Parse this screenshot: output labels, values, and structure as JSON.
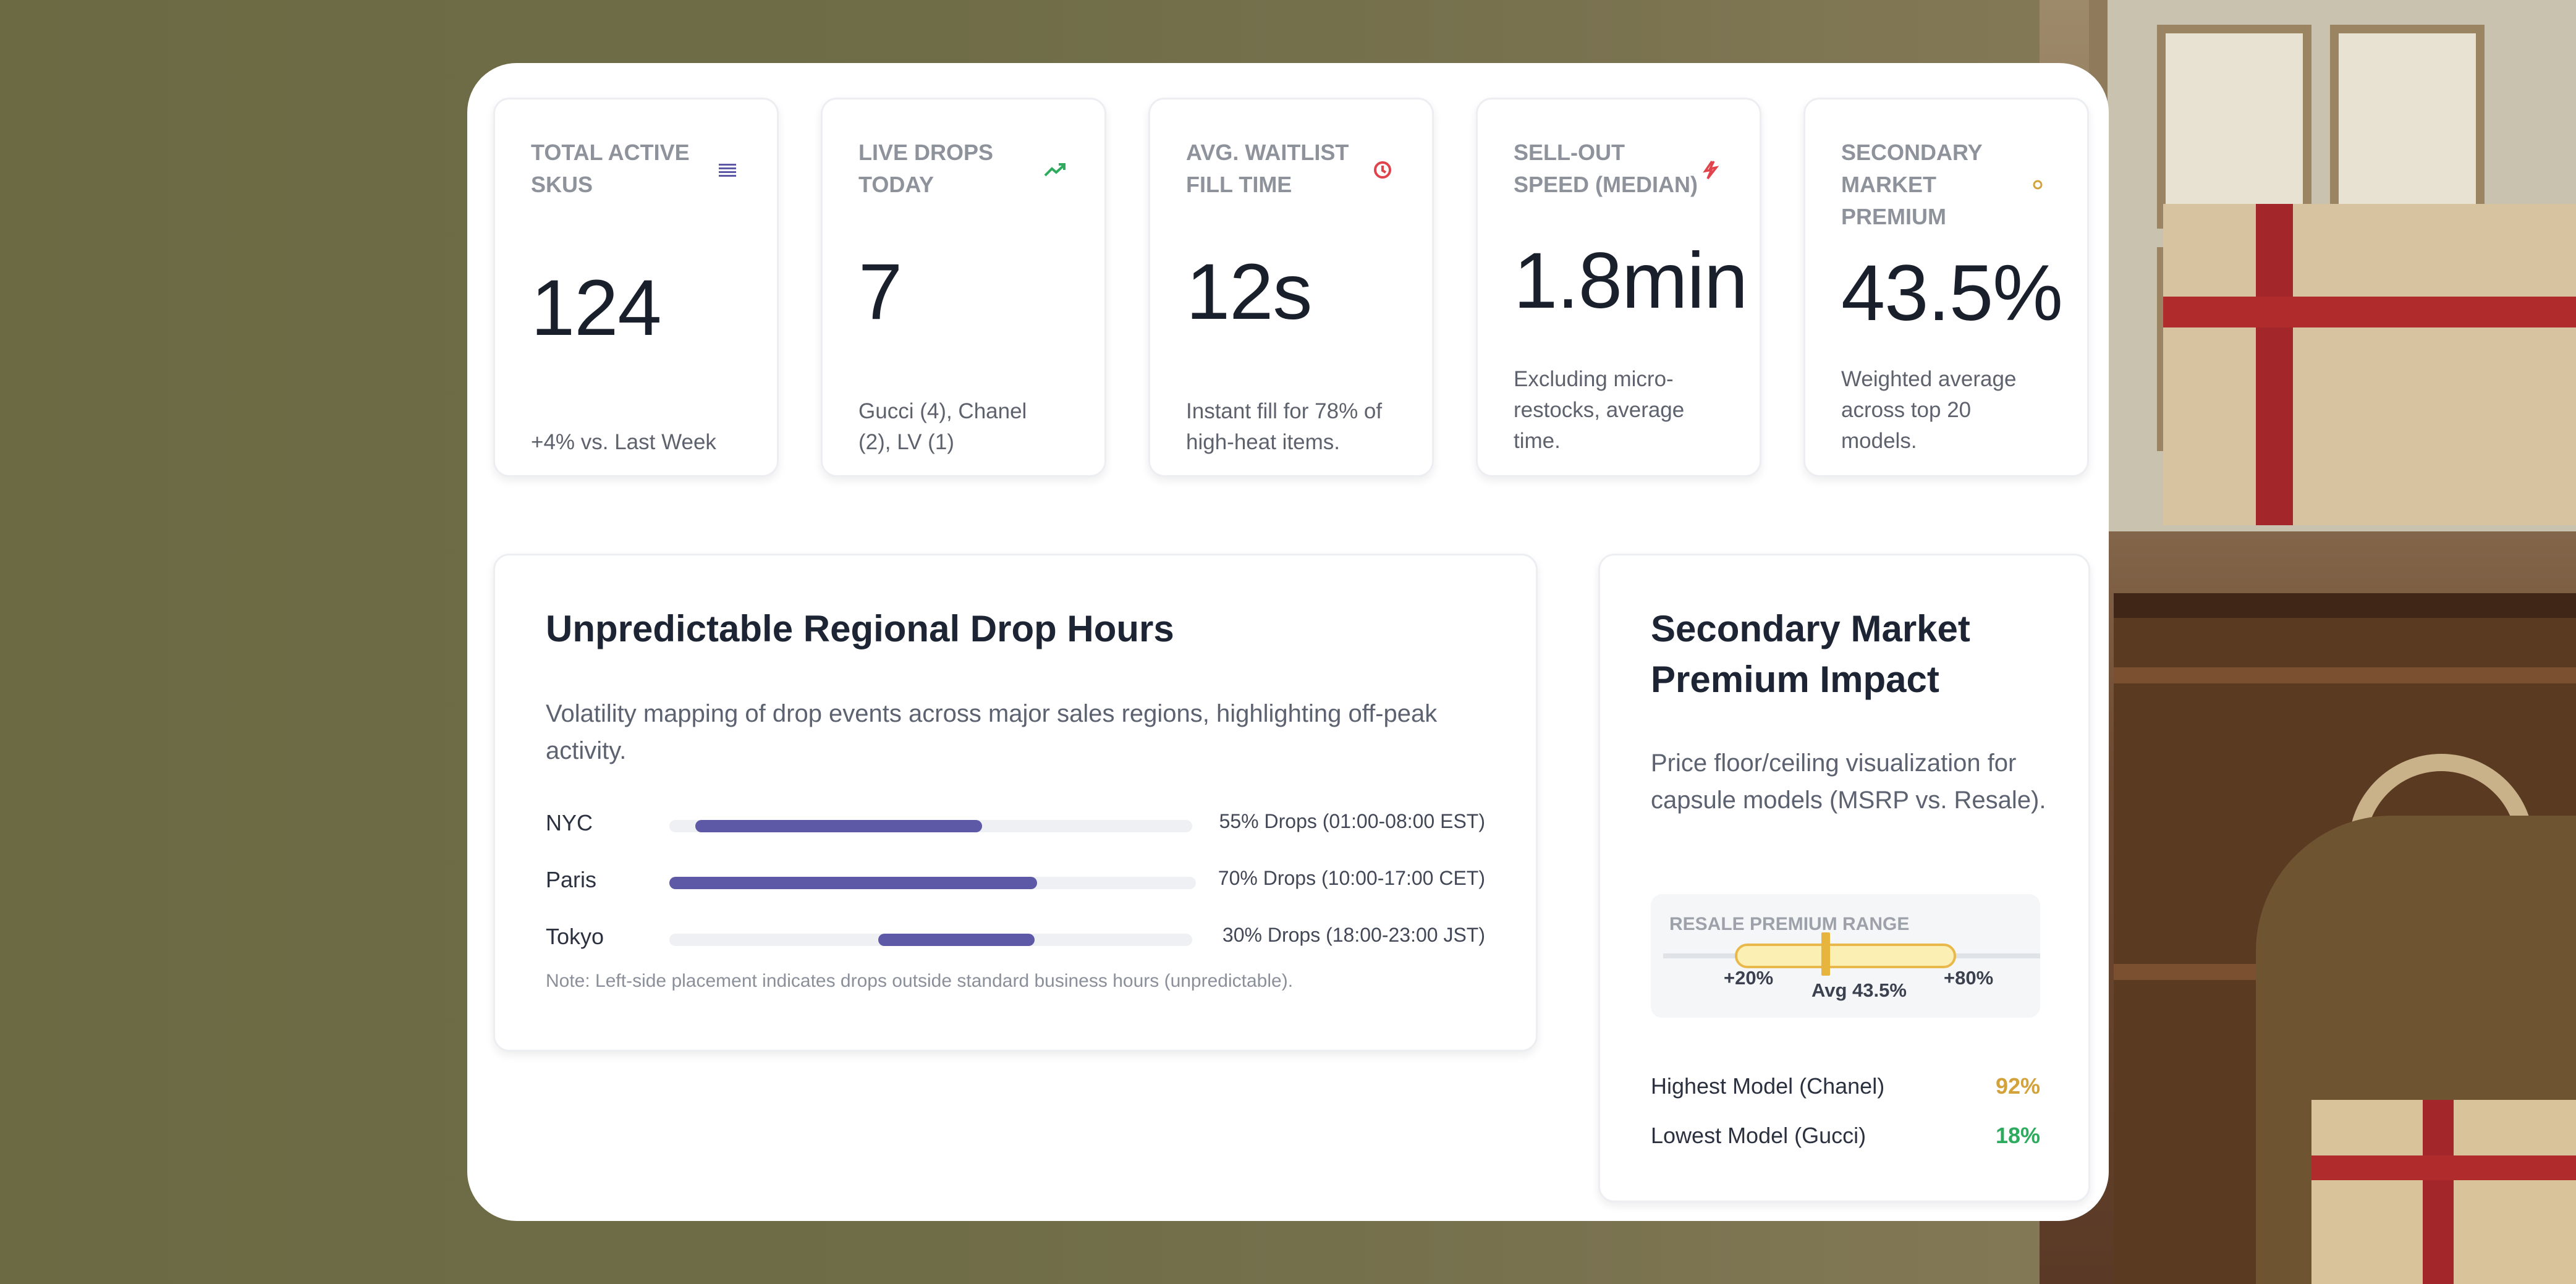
{
  "colors": {
    "accent_purple": "#5d59a6",
    "success_green": "#2eab5e",
    "danger_red": "#e0434b",
    "warning_gold": "#d4a23a"
  },
  "kpis": [
    {
      "title": "Total Active SKUs",
      "value": "124",
      "subtitle": "+4% vs. Last Week",
      "icon": "list-icon"
    },
    {
      "title": "Live Drops Today",
      "value": "7",
      "subtitle": "Gucci (4), Chanel (2), LV (1)",
      "icon": "trending-up-icon"
    },
    {
      "title": "Avg. Waitlist Fill Time",
      "value": "12s",
      "subtitle": "Instant fill for 78% of high-heat items.",
      "icon": "clock-icon"
    },
    {
      "title": "Sell-Out Speed (Median)",
      "value": "1.8min",
      "subtitle": "Excluding micro-restocks, average time.",
      "icon": "lightning-icon"
    },
    {
      "title": "Secondary Market Premium",
      "value": "43.5%",
      "subtitle": "Weighted average across top 20 models.",
      "icon": "dot-icon"
    }
  ],
  "drops": {
    "title": "Unpredictable Regional Drop Hours",
    "description": "Volatility mapping of drop events across major sales regions, highlighting off-peak activity.",
    "regions": [
      {
        "name": "NYC",
        "share": 0.55,
        "start": 0.05,
        "label": "55% Drops (01:00-08:00 EST)"
      },
      {
        "name": "Paris",
        "share": 0.7,
        "start": 0.0,
        "label": "70% Drops (10:00-17:00 CET)"
      },
      {
        "name": "Tokyo",
        "share": 0.3,
        "start": 0.4,
        "label": "30% Drops (18:00-23:00 JST)"
      }
    ],
    "note": "Note: Left-side placement indicates drops outside standard business hours (unpredictable)."
  },
  "premium": {
    "title": "Secondary Market Premium Impact",
    "description": "Price floor/ceiling visualization for capsule models (MSRP vs. Resale).",
    "range": {
      "caption": "Resale Premium Range",
      "min_label": "+20%",
      "max_label": "+80%",
      "avg_label": "Avg 43.5%",
      "min": 20,
      "max": 80,
      "avg": 43.5
    },
    "stats": [
      {
        "label": "Highest Model (Chanel)",
        "value": "92%",
        "color": "#d4a23a"
      },
      {
        "label": "Lowest Model (Gucci)",
        "value": "18%",
        "color": "#2eab5e"
      }
    ]
  }
}
